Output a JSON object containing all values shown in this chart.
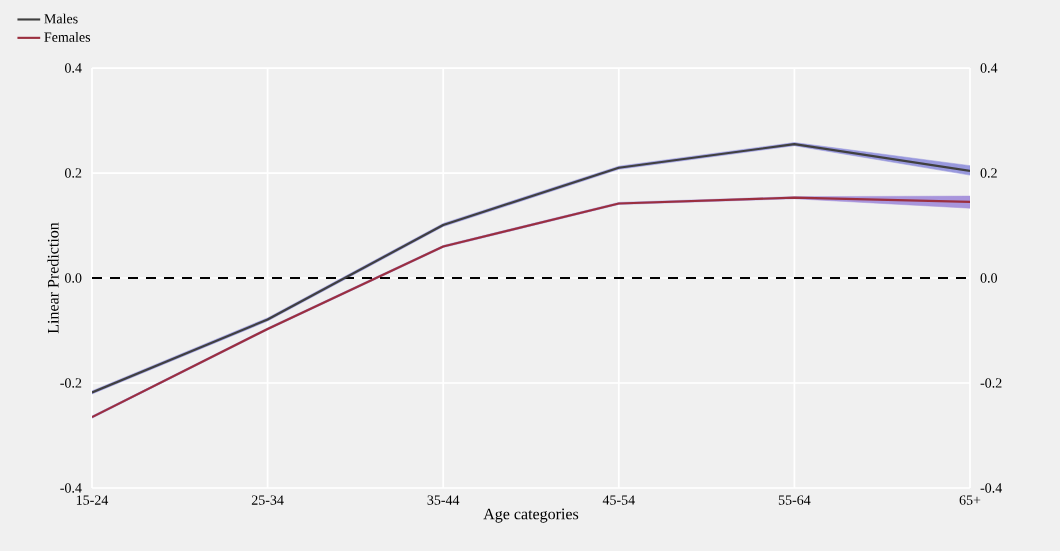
{
  "chart_data": {
    "type": "line",
    "xlabel": "Age categories",
    "ylabel": "Linear Prediction",
    "categories": [
      "15-24",
      "25-34",
      "35-44",
      "45-54",
      "55-64",
      "65+"
    ],
    "series": [
      {
        "name": "Males",
        "color": "#404040",
        "values": [
          -0.218,
          -0.079,
          0.101,
          0.21,
          0.255,
          0.204
        ],
        "lower": [
          -0.221,
          -0.082,
          0.098,
          0.207,
          0.252,
          0.196
        ],
        "upper": [
          -0.215,
          -0.076,
          0.104,
          0.213,
          0.258,
          0.214
        ]
      },
      {
        "name": "Females",
        "color": "#9b2f3f",
        "values": [
          -0.265,
          -0.097,
          0.06,
          0.142,
          0.153,
          0.145
        ],
        "lower": [
          -0.267,
          -0.099,
          0.058,
          0.14,
          0.151,
          0.133
        ],
        "upper": [
          -0.263,
          -0.095,
          0.062,
          0.144,
          0.155,
          0.156
        ]
      }
    ],
    "ylim": [
      -0.4,
      0.4
    ],
    "yticks": [
      -0.4,
      -0.2,
      {
        "value": 0,
        "label": "0.0"
      },
      0.2,
      0.4
    ],
    "y2lim": [
      -0.4,
      0.4
    ],
    "y2ticks": [
      -0.4,
      -0.2,
      {
        "value": 0,
        "label": "0.0"
      },
      0.2,
      0.4
    ],
    "ref_lines": [
      {
        "axis": "y",
        "value": 0,
        "color": "#000000",
        "line_style": "dashed"
      }
    ],
    "grid": true,
    "legend": "top left"
  }
}
